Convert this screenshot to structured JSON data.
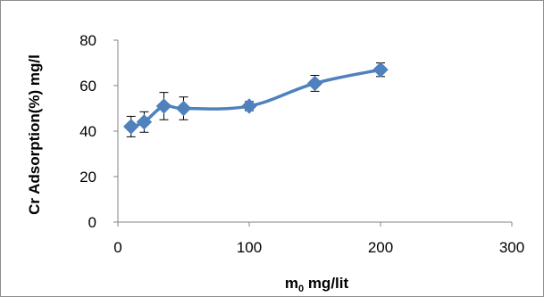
{
  "chart_data": {
    "type": "scatter",
    "title": "",
    "xlabel": "m0 mg/lit",
    "xlabel_parts": {
      "base": "m",
      "sub": "0",
      "rest": " mg/lit"
    },
    "ylabel": "Cr Adsorption(%) mg/l",
    "xlim": [
      0,
      300
    ],
    "ylim": [
      0,
      80
    ],
    "x_ticks": [
      0,
      100,
      200,
      300
    ],
    "y_ticks": [
      0,
      20,
      40,
      60,
      80
    ],
    "grid": false,
    "legend": "none",
    "series": [
      {
        "color": "#4f81bd",
        "marker": "diamond",
        "line": "smooth",
        "points": [
          {
            "x": 10,
            "y": 42,
            "err": 4.5
          },
          {
            "x": 20,
            "y": 44,
            "err": 4.5
          },
          {
            "x": 35,
            "y": 51,
            "err": 6
          },
          {
            "x": 50,
            "y": 50,
            "err": 5
          },
          {
            "x": 100,
            "y": 51,
            "err": 2
          },
          {
            "x": 150,
            "y": 61,
            "err": 3.5
          },
          {
            "x": 200,
            "y": 67,
            "err": 3
          }
        ]
      }
    ],
    "axis_color": "#868686",
    "errorbar_color": "#000000"
  }
}
